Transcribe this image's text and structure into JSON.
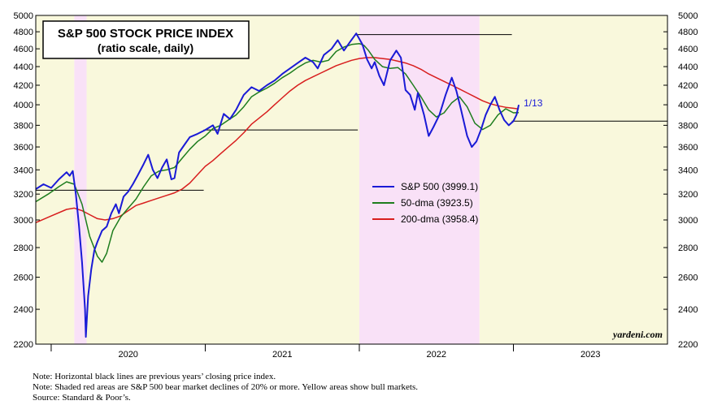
{
  "chart_data": {
    "type": "line",
    "title": "S&P 500 STOCK PRICE INDEX",
    "subtitle": "(ratio scale, daily)",
    "yscale": "log",
    "ylim": [
      2200,
      5000
    ],
    "yticks": [
      2200,
      2400,
      2600,
      2800,
      3000,
      3200,
      3400,
      3600,
      3800,
      4000,
      4200,
      4400,
      4600,
      4800,
      5000
    ],
    "ytick_labels": [
      "2200",
      "2400",
      "2600",
      "2800",
      "3000",
      "3200",
      "3400",
      "3600",
      "3800",
      "4000",
      "4200",
      "4400",
      "4600",
      "4800",
      "5000"
    ],
    "xlim": [
      2019.9,
      2024.0
    ],
    "year_labels": [
      {
        "label": "2020",
        "at": 2020.5
      },
      {
        "label": "2021",
        "at": 2021.5
      },
      {
        "label": "2022",
        "at": 2022.5
      },
      {
        "label": "2023",
        "at": 2023.5
      }
    ],
    "shaded_regions": [
      {
        "type": "bull",
        "from": 2019.9,
        "to": 2020.15
      },
      {
        "type": "bear",
        "from": 2020.15,
        "to": 2020.23
      },
      {
        "type": "bull",
        "from": 2020.23,
        "to": 2022.0
      },
      {
        "type": "bear",
        "from": 2022.0,
        "to": 2022.78
      },
      {
        "type": "bull",
        "from": 2022.78,
        "to": 2024.0
      }
    ],
    "previous_close_lines": [
      {
        "value": 3230.8,
        "from": 2019.9,
        "to": 2020.99
      },
      {
        "value": 3756.1,
        "from": 2020.99,
        "to": 2021.99
      },
      {
        "value": 4766.2,
        "from": 2021.99,
        "to": 2022.99
      },
      {
        "value": 3839.5,
        "from": 2022.99,
        "to": 2024.0
      }
    ],
    "series": [
      {
        "name": "S&P 500 (3999.1)",
        "color": "#1a1ad6",
        "points": [
          [
            2019.9,
            3240
          ],
          [
            2019.95,
            3280
          ],
          [
            2020.0,
            3250
          ],
          [
            2020.05,
            3320
          ],
          [
            2020.1,
            3380
          ],
          [
            2020.12,
            3350
          ],
          [
            2020.14,
            3390
          ],
          [
            2020.16,
            3200
          ],
          [
            2020.18,
            2960
          ],
          [
            2020.2,
            2700
          ],
          [
            2020.21,
            2550
          ],
          [
            2020.22,
            2400
          ],
          [
            2020.225,
            2240
          ],
          [
            2020.24,
            2480
          ],
          [
            2020.26,
            2650
          ],
          [
            2020.28,
            2780
          ],
          [
            2020.3,
            2840
          ],
          [
            2020.33,
            2920
          ],
          [
            2020.36,
            2950
          ],
          [
            2020.39,
            3050
          ],
          [
            2020.42,
            3120
          ],
          [
            2020.44,
            3050
          ],
          [
            2020.47,
            3180
          ],
          [
            2020.5,
            3220
          ],
          [
            2020.53,
            3280
          ],
          [
            2020.56,
            3350
          ],
          [
            2020.6,
            3450
          ],
          [
            2020.63,
            3530
          ],
          [
            2020.66,
            3400
          ],
          [
            2020.69,
            3330
          ],
          [
            2020.72,
            3420
          ],
          [
            2020.75,
            3490
          ],
          [
            2020.78,
            3320
          ],
          [
            2020.8,
            3330
          ],
          [
            2020.83,
            3550
          ],
          [
            2020.87,
            3630
          ],
          [
            2020.9,
            3690
          ],
          [
            2020.95,
            3720
          ],
          [
            2021.0,
            3756
          ],
          [
            2021.05,
            3800
          ],
          [
            2021.08,
            3720
          ],
          [
            2021.12,
            3910
          ],
          [
            2021.16,
            3860
          ],
          [
            2021.2,
            3950
          ],
          [
            2021.25,
            4100
          ],
          [
            2021.3,
            4180
          ],
          [
            2021.35,
            4140
          ],
          [
            2021.4,
            4200
          ],
          [
            2021.45,
            4250
          ],
          [
            2021.5,
            4320
          ],
          [
            2021.55,
            4380
          ],
          [
            2021.6,
            4440
          ],
          [
            2021.65,
            4500
          ],
          [
            2021.7,
            4450
          ],
          [
            2021.73,
            4380
          ],
          [
            2021.77,
            4530
          ],
          [
            2021.82,
            4600
          ],
          [
            2021.86,
            4700
          ],
          [
            2021.9,
            4580
          ],
          [
            2021.94,
            4680
          ],
          [
            2021.98,
            4780
          ],
          [
            2022.02,
            4650
          ],
          [
            2022.05,
            4480
          ],
          [
            2022.08,
            4380
          ],
          [
            2022.1,
            4450
          ],
          [
            2022.13,
            4300
          ],
          [
            2022.16,
            4200
          ],
          [
            2022.2,
            4470
          ],
          [
            2022.24,
            4580
          ],
          [
            2022.27,
            4500
          ],
          [
            2022.3,
            4150
          ],
          [
            2022.33,
            4100
          ],
          [
            2022.36,
            3950
          ],
          [
            2022.38,
            4120
          ],
          [
            2022.42,
            3900
          ],
          [
            2022.45,
            3700
          ],
          [
            2022.48,
            3780
          ],
          [
            2022.52,
            3900
          ],
          [
            2022.56,
            4100
          ],
          [
            2022.6,
            4280
          ],
          [
            2022.63,
            4140
          ],
          [
            2022.66,
            3950
          ],
          [
            2022.7,
            3700
          ],
          [
            2022.73,
            3600
          ],
          [
            2022.76,
            3650
          ],
          [
            2022.79,
            3760
          ],
          [
            2022.82,
            3900
          ],
          [
            2022.85,
            4000
          ],
          [
            2022.88,
            4080
          ],
          [
            2022.91,
            3950
          ],
          [
            2022.94,
            3850
          ],
          [
            2022.97,
            3800
          ],
          [
            2023.0,
            3840
          ],
          [
            2023.02,
            3900
          ],
          [
            2023.035,
            3999
          ]
        ]
      },
      {
        "name": "50-dma (3923.5)",
        "color": "#1e7d1e",
        "points": [
          [
            2019.9,
            3140
          ],
          [
            2019.98,
            3200
          ],
          [
            2020.05,
            3260
          ],
          [
            2020.1,
            3300
          ],
          [
            2020.15,
            3280
          ],
          [
            2020.2,
            3120
          ],
          [
            2020.25,
            2880
          ],
          [
            2020.3,
            2740
          ],
          [
            2020.33,
            2700
          ],
          [
            2020.36,
            2760
          ],
          [
            2020.4,
            2920
          ],
          [
            2020.45,
            3020
          ],
          [
            2020.5,
            3090
          ],
          [
            2020.55,
            3160
          ],
          [
            2020.6,
            3260
          ],
          [
            2020.65,
            3350
          ],
          [
            2020.7,
            3390
          ],
          [
            2020.75,
            3400
          ],
          [
            2020.8,
            3420
          ],
          [
            2020.85,
            3500
          ],
          [
            2020.9,
            3580
          ],
          [
            2020.95,
            3650
          ],
          [
            2021.0,
            3700
          ],
          [
            2021.05,
            3770
          ],
          [
            2021.1,
            3800
          ],
          [
            2021.15,
            3850
          ],
          [
            2021.2,
            3900
          ],
          [
            2021.25,
            3980
          ],
          [
            2021.3,
            4080
          ],
          [
            2021.35,
            4130
          ],
          [
            2021.4,
            4170
          ],
          [
            2021.45,
            4220
          ],
          [
            2021.5,
            4280
          ],
          [
            2021.55,
            4330
          ],
          [
            2021.6,
            4390
          ],
          [
            2021.65,
            4440
          ],
          [
            2021.7,
            4470
          ],
          [
            2021.75,
            4450
          ],
          [
            2021.8,
            4470
          ],
          [
            2021.85,
            4570
          ],
          [
            2021.9,
            4620
          ],
          [
            2021.95,
            4650
          ],
          [
            2022.0,
            4660
          ],
          [
            2022.03,
            4640
          ],
          [
            2022.06,
            4580
          ],
          [
            2022.1,
            4480
          ],
          [
            2022.15,
            4400
          ],
          [
            2022.2,
            4380
          ],
          [
            2022.25,
            4390
          ],
          [
            2022.3,
            4320
          ],
          [
            2022.35,
            4200
          ],
          [
            2022.4,
            4080
          ],
          [
            2022.45,
            3950
          ],
          [
            2022.5,
            3880
          ],
          [
            2022.55,
            3920
          ],
          [
            2022.6,
            4020
          ],
          [
            2022.65,
            4080
          ],
          [
            2022.7,
            3980
          ],
          [
            2022.75,
            3820
          ],
          [
            2022.8,
            3760
          ],
          [
            2022.85,
            3800
          ],
          [
            2022.9,
            3900
          ],
          [
            2022.95,
            3960
          ],
          [
            2023.0,
            3920
          ],
          [
            2023.035,
            3923
          ]
        ]
      },
      {
        "name": "200-dma (3958.4)",
        "color": "#d81e1e",
        "points": [
          [
            2019.9,
            2980
          ],
          [
            2020.0,
            3030
          ],
          [
            2020.1,
            3080
          ],
          [
            2020.15,
            3090
          ],
          [
            2020.2,
            3070
          ],
          [
            2020.25,
            3040
          ],
          [
            2020.3,
            3010
          ],
          [
            2020.35,
            3000
          ],
          [
            2020.4,
            3010
          ],
          [
            2020.45,
            3030
          ],
          [
            2020.5,
            3070
          ],
          [
            2020.55,
            3110
          ],
          [
            2020.6,
            3130
          ],
          [
            2020.65,
            3150
          ],
          [
            2020.7,
            3170
          ],
          [
            2020.75,
            3190
          ],
          [
            2020.8,
            3210
          ],
          [
            2020.85,
            3240
          ],
          [
            2020.9,
            3290
          ],
          [
            2020.95,
            3360
          ],
          [
            2021.0,
            3430
          ],
          [
            2021.05,
            3480
          ],
          [
            2021.1,
            3540
          ],
          [
            2021.15,
            3600
          ],
          [
            2021.2,
            3660
          ],
          [
            2021.25,
            3730
          ],
          [
            2021.3,
            3810
          ],
          [
            2021.35,
            3870
          ],
          [
            2021.4,
            3930
          ],
          [
            2021.45,
            4000
          ],
          [
            2021.5,
            4070
          ],
          [
            2021.55,
            4140
          ],
          [
            2021.6,
            4200
          ],
          [
            2021.65,
            4250
          ],
          [
            2021.7,
            4290
          ],
          [
            2021.75,
            4330
          ],
          [
            2021.8,
            4370
          ],
          [
            2021.85,
            4410
          ],
          [
            2021.9,
            4440
          ],
          [
            2021.95,
            4470
          ],
          [
            2022.0,
            4490
          ],
          [
            2022.05,
            4500
          ],
          [
            2022.1,
            4500
          ],
          [
            2022.15,
            4490
          ],
          [
            2022.2,
            4480
          ],
          [
            2022.25,
            4460
          ],
          [
            2022.3,
            4440
          ],
          [
            2022.35,
            4410
          ],
          [
            2022.4,
            4370
          ],
          [
            2022.45,
            4320
          ],
          [
            2022.5,
            4280
          ],
          [
            2022.55,
            4240
          ],
          [
            2022.6,
            4200
          ],
          [
            2022.65,
            4160
          ],
          [
            2022.7,
            4120
          ],
          [
            2022.75,
            4080
          ],
          [
            2022.8,
            4040
          ],
          [
            2022.85,
            4010
          ],
          [
            2022.9,
            3990
          ],
          [
            2022.95,
            3975
          ],
          [
            2023.0,
            3965
          ],
          [
            2023.035,
            3958
          ]
        ]
      }
    ],
    "annotation": {
      "text": "1/13",
      "x": 2023.035,
      "y": 3999
    },
    "watermark": "yardeni.com",
    "colors": {
      "bull": "#f9f8dc",
      "bear": "#f9e1f7",
      "axis": "#000000"
    }
  },
  "notes": [
    "Note: Horizontal black lines are previous years’ closing price index.",
    "Note: Shaded red areas are S&P 500 bear market declines of 20% or more. Yellow areas show bull markets.",
    "Source: Standard & Poor’s."
  ]
}
